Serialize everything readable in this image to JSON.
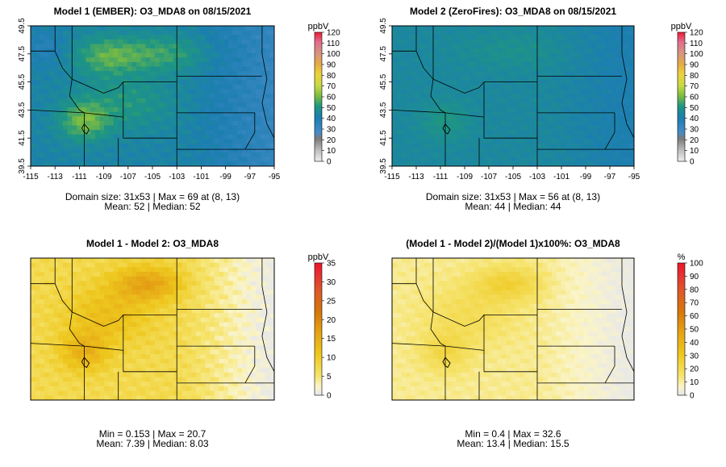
{
  "figure": {
    "panels": [
      {
        "title": "Model 1 (EMBER): O3_MDA8 on 08/15/2021",
        "unit": "ppbV",
        "colorbar_ticks": [
          0,
          10,
          20,
          30,
          40,
          50,
          60,
          70,
          80,
          90,
          100,
          110,
          120
        ],
        "palette": "concentration",
        "x_ticks": [
          "-115",
          "-113",
          "-111",
          "-109",
          "-107",
          "-105",
          "-103",
          "-101",
          "-99",
          "-97",
          "-95"
        ],
        "y_ticks": [
          "39.5",
          "41.5",
          "43.5",
          "45.5",
          "47.5",
          "49.5"
        ],
        "show_axes": true,
        "stats_line1": "Domain size: 31x53 | Max = 69 at (8, 13)",
        "stats_line2": "Mean: 52 |  Median: 52",
        "field": "ember"
      },
      {
        "title": "Model 2 (ZeroFires): O3_MDA8 on 08/15/2021",
        "unit": "ppbV",
        "colorbar_ticks": [
          0,
          10,
          20,
          30,
          40,
          50,
          60,
          70,
          80,
          90,
          100,
          110,
          120
        ],
        "palette": "concentration",
        "x_ticks": [
          "-115",
          "-113",
          "-111",
          "-109",
          "-107",
          "-105",
          "-103",
          "-101",
          "-99",
          "-97",
          "-95"
        ],
        "y_ticks": [
          "39.5",
          "41.5",
          "43.5",
          "45.5",
          "47.5",
          "49.5"
        ],
        "show_axes": true,
        "stats_line1": "Domain size: 31x53 | Max = 56 at (8, 13)",
        "stats_line2": "Mean: 44 |  Median: 44",
        "field": "zerofires"
      },
      {
        "title": "Model 1 - Model 2: O3_MDA8",
        "unit": "ppbV",
        "colorbar_ticks": [
          0,
          5,
          10,
          15,
          20,
          25,
          30,
          35
        ],
        "palette": "difference",
        "x_ticks": [],
        "y_ticks": [],
        "show_axes": false,
        "stats_line1": "Min = 0.153 | Max = 20.7",
        "stats_line2": "Mean: 7.39 |  Median: 8.03",
        "field": "diff"
      },
      {
        "title": "(Model 1 - Model 2)/(Model 1)x100%: O3_MDA8",
        "unit": "%",
        "colorbar_ticks": [
          0,
          10,
          20,
          30,
          40,
          50,
          60,
          70,
          80,
          90,
          100
        ],
        "palette": "difference",
        "x_ticks": [],
        "y_ticks": [],
        "show_axes": false,
        "stats_line1": "Min = 0.4 | Max = 32.6",
        "stats_line2": "Mean: 13.4 |  Median: 15.5",
        "field": "pct"
      }
    ]
  },
  "chart_data": [
    {
      "type": "heatmap",
      "title": "Model 1 (EMBER): O3_MDA8 on 08/15/2021",
      "unit": "ppbV",
      "grid": {
        "rows": 31,
        "cols": 53
      },
      "x_range": [
        -115,
        -95
      ],
      "y_range": [
        39.5,
        49.5
      ],
      "color_range": [
        0,
        120
      ],
      "max": 69,
      "max_at": [
        8,
        13
      ],
      "mean": 52,
      "median": 52
    },
    {
      "type": "heatmap",
      "title": "Model 2 (ZeroFires): O3_MDA8 on 08/15/2021",
      "unit": "ppbV",
      "grid": {
        "rows": 31,
        "cols": 53
      },
      "x_range": [
        -115,
        -95
      ],
      "y_range": [
        39.5,
        49.5
      ],
      "color_range": [
        0,
        120
      ],
      "max": 56,
      "max_at": [
        8,
        13
      ],
      "mean": 44,
      "median": 44
    },
    {
      "type": "heatmap",
      "title": "Model 1 - Model 2: O3_MDA8",
      "unit": "ppbV",
      "grid": {
        "rows": 31,
        "cols": 53
      },
      "color_range": [
        0,
        35
      ],
      "min": 0.153,
      "max": 20.7,
      "mean": 7.39,
      "median": 8.03
    },
    {
      "type": "heatmap",
      "title": "(Model 1 - Model 2)/(Model 1)x100%: O3_MDA8",
      "unit": "%",
      "grid": {
        "rows": 31,
        "cols": 53
      },
      "color_range": [
        0,
        100
      ],
      "min": 0.4,
      "max": 32.6,
      "mean": 13.4,
      "median": 15.5
    }
  ]
}
